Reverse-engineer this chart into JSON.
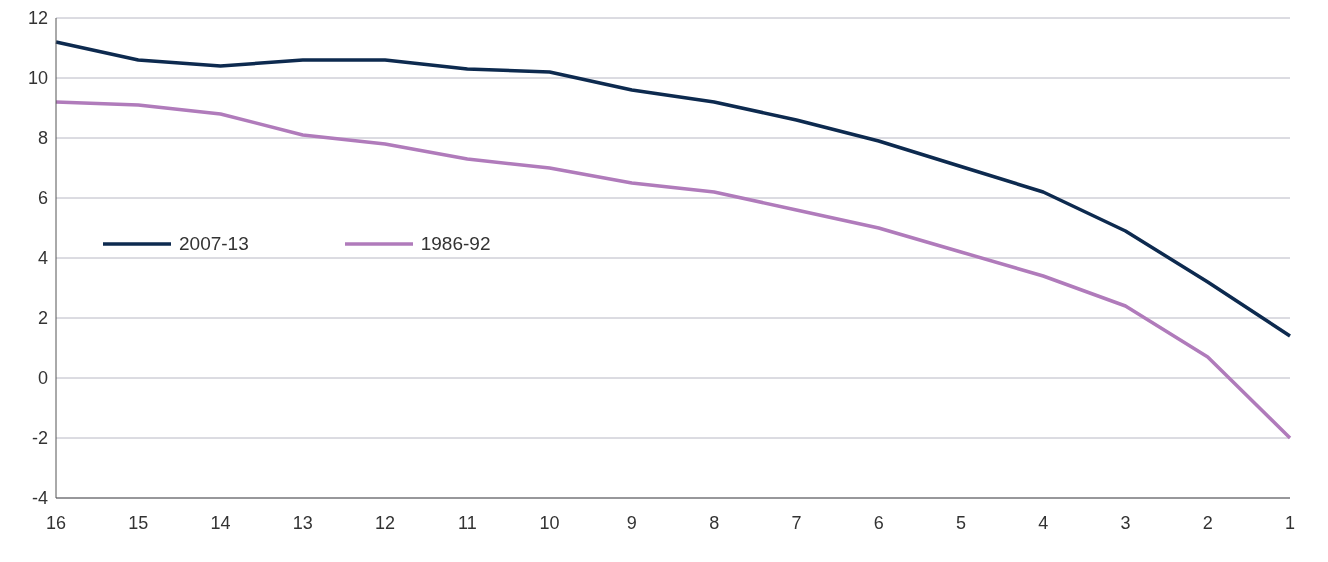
{
  "chart_data": {
    "type": "line",
    "categories": [
      "16",
      "15",
      "14",
      "13",
      "12",
      "11",
      "10",
      "9",
      "8",
      "7",
      "6",
      "5",
      "4",
      "3",
      "2",
      "1"
    ],
    "series": [
      {
        "name": "2007-13",
        "color": "#0d2a4f",
        "values": [
          11.2,
          10.6,
          10.4,
          10.6,
          10.6,
          10.3,
          10.2,
          9.6,
          9.2,
          8.6,
          7.9,
          7.05,
          6.2,
          4.9,
          3.2,
          1.4
        ]
      },
      {
        "name": "1986-92",
        "color": "#b07bbb",
        "values": [
          9.2,
          9.1,
          8.8,
          8.1,
          7.8,
          7.3,
          7.0,
          6.5,
          6.2,
          5.6,
          5.0,
          4.2,
          3.4,
          2.4,
          0.7,
          -2.0
        ]
      }
    ],
    "ylim": [
      -4,
      12
    ],
    "yticks": [
      -4,
      -2,
      0,
      2,
      4,
      6,
      8,
      10,
      12
    ],
    "grid": "y",
    "legend": "left",
    "marker": "none",
    "line_style": "solid"
  }
}
